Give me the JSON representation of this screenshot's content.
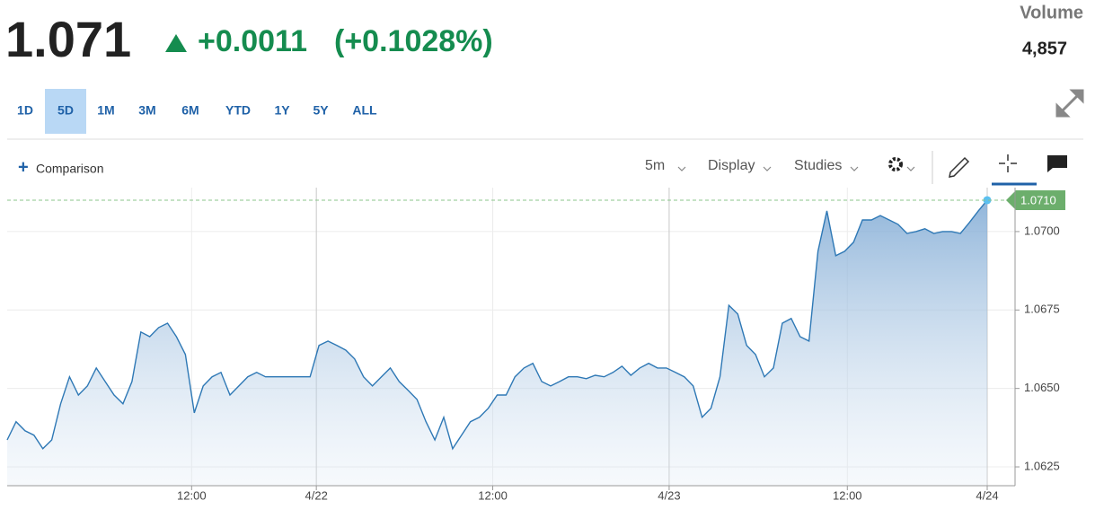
{
  "header": {
    "price": "1.071",
    "change": "+0.0011",
    "change_pct": "(+0.1028%)",
    "volume_label": "Volume",
    "volume": "4,857"
  },
  "ranges": {
    "items": [
      "1D",
      "5D",
      "1M",
      "3M",
      "6M",
      "YTD",
      "1Y",
      "5Y",
      "ALL"
    ]
  },
  "toolbar": {
    "comparison": "Comparison",
    "interval": "5m",
    "display": "Display",
    "studies": "Studies"
  },
  "chart_data": {
    "type": "line",
    "color": "#2e78b5",
    "values": [
      1.06336,
      1.06394,
      1.06365,
      1.06351,
      1.06308,
      1.06336,
      1.06451,
      1.06537,
      1.06479,
      1.06508,
      1.06565,
      1.06522,
      1.06479,
      1.06451,
      1.06522,
      1.0668,
      1.06665,
      1.06694,
      1.06708,
      1.06665,
      1.06608,
      1.06422,
      1.06508,
      1.06537,
      1.06551,
      1.06479,
      1.06508,
      1.06537,
      1.06551,
      1.06537,
      1.06537,
      1.06537,
      1.06537,
      1.06537,
      1.06537,
      1.06637,
      1.06651,
      1.06637,
      1.06622,
      1.06594,
      1.06537,
      1.06508,
      1.06537,
      1.06565,
      1.06522,
      1.06494,
      1.06465,
      1.06394,
      1.06336,
      1.06408,
      1.06308,
      1.06351,
      1.06394,
      1.06408,
      1.06437,
      1.06479,
      1.06479,
      1.06537,
      1.06565,
      1.0658,
      1.06522,
      1.06508,
      1.06522,
      1.06537,
      1.06537,
      1.06531,
      1.06542,
      1.06537,
      1.06551,
      1.06571,
      1.06542,
      1.06565,
      1.0658,
      1.06565,
      1.06565,
      1.06551,
      1.06537,
      1.06508,
      1.06408,
      1.06437,
      1.06537,
      1.06765,
      1.06737,
      1.06637,
      1.06608,
      1.06537,
      1.06565,
      1.06708,
      1.06723,
      1.06665,
      1.06651,
      1.06937,
      1.07066,
      1.06923,
      1.06937,
      1.06966,
      1.07037,
      1.07037,
      1.07051,
      1.07037,
      1.07023,
      1.06994,
      1.07,
      1.07009,
      1.06994,
      1.07,
      1.07,
      1.06994,
      1.07029,
      1.07066,
      1.071
    ],
    "xlim": [
      0,
      110
    ],
    "xticks": [
      {
        "value": 20.7,
        "label": "12:00"
      },
      {
        "value": 34.7,
        "label": "4/22"
      },
      {
        "value": 54.5,
        "label": "12:00"
      },
      {
        "value": 74.3,
        "label": "4/23"
      },
      {
        "value": 94.3,
        "label": "12:00"
      },
      {
        "value": 110,
        "label": "4/24"
      }
    ],
    "ylim": [
      1.0619,
      1.0714
    ],
    "yticks": [
      {
        "value": 1.0625,
        "label": "1.0625"
      },
      {
        "value": 1.065,
        "label": "1.0650"
      },
      {
        "value": 1.0675,
        "label": "1.0675"
      },
      {
        "value": 1.07,
        "label": "1.0700"
      }
    ],
    "last_price": {
      "value": 1.071,
      "label": "1.0710"
    },
    "grid": true
  }
}
